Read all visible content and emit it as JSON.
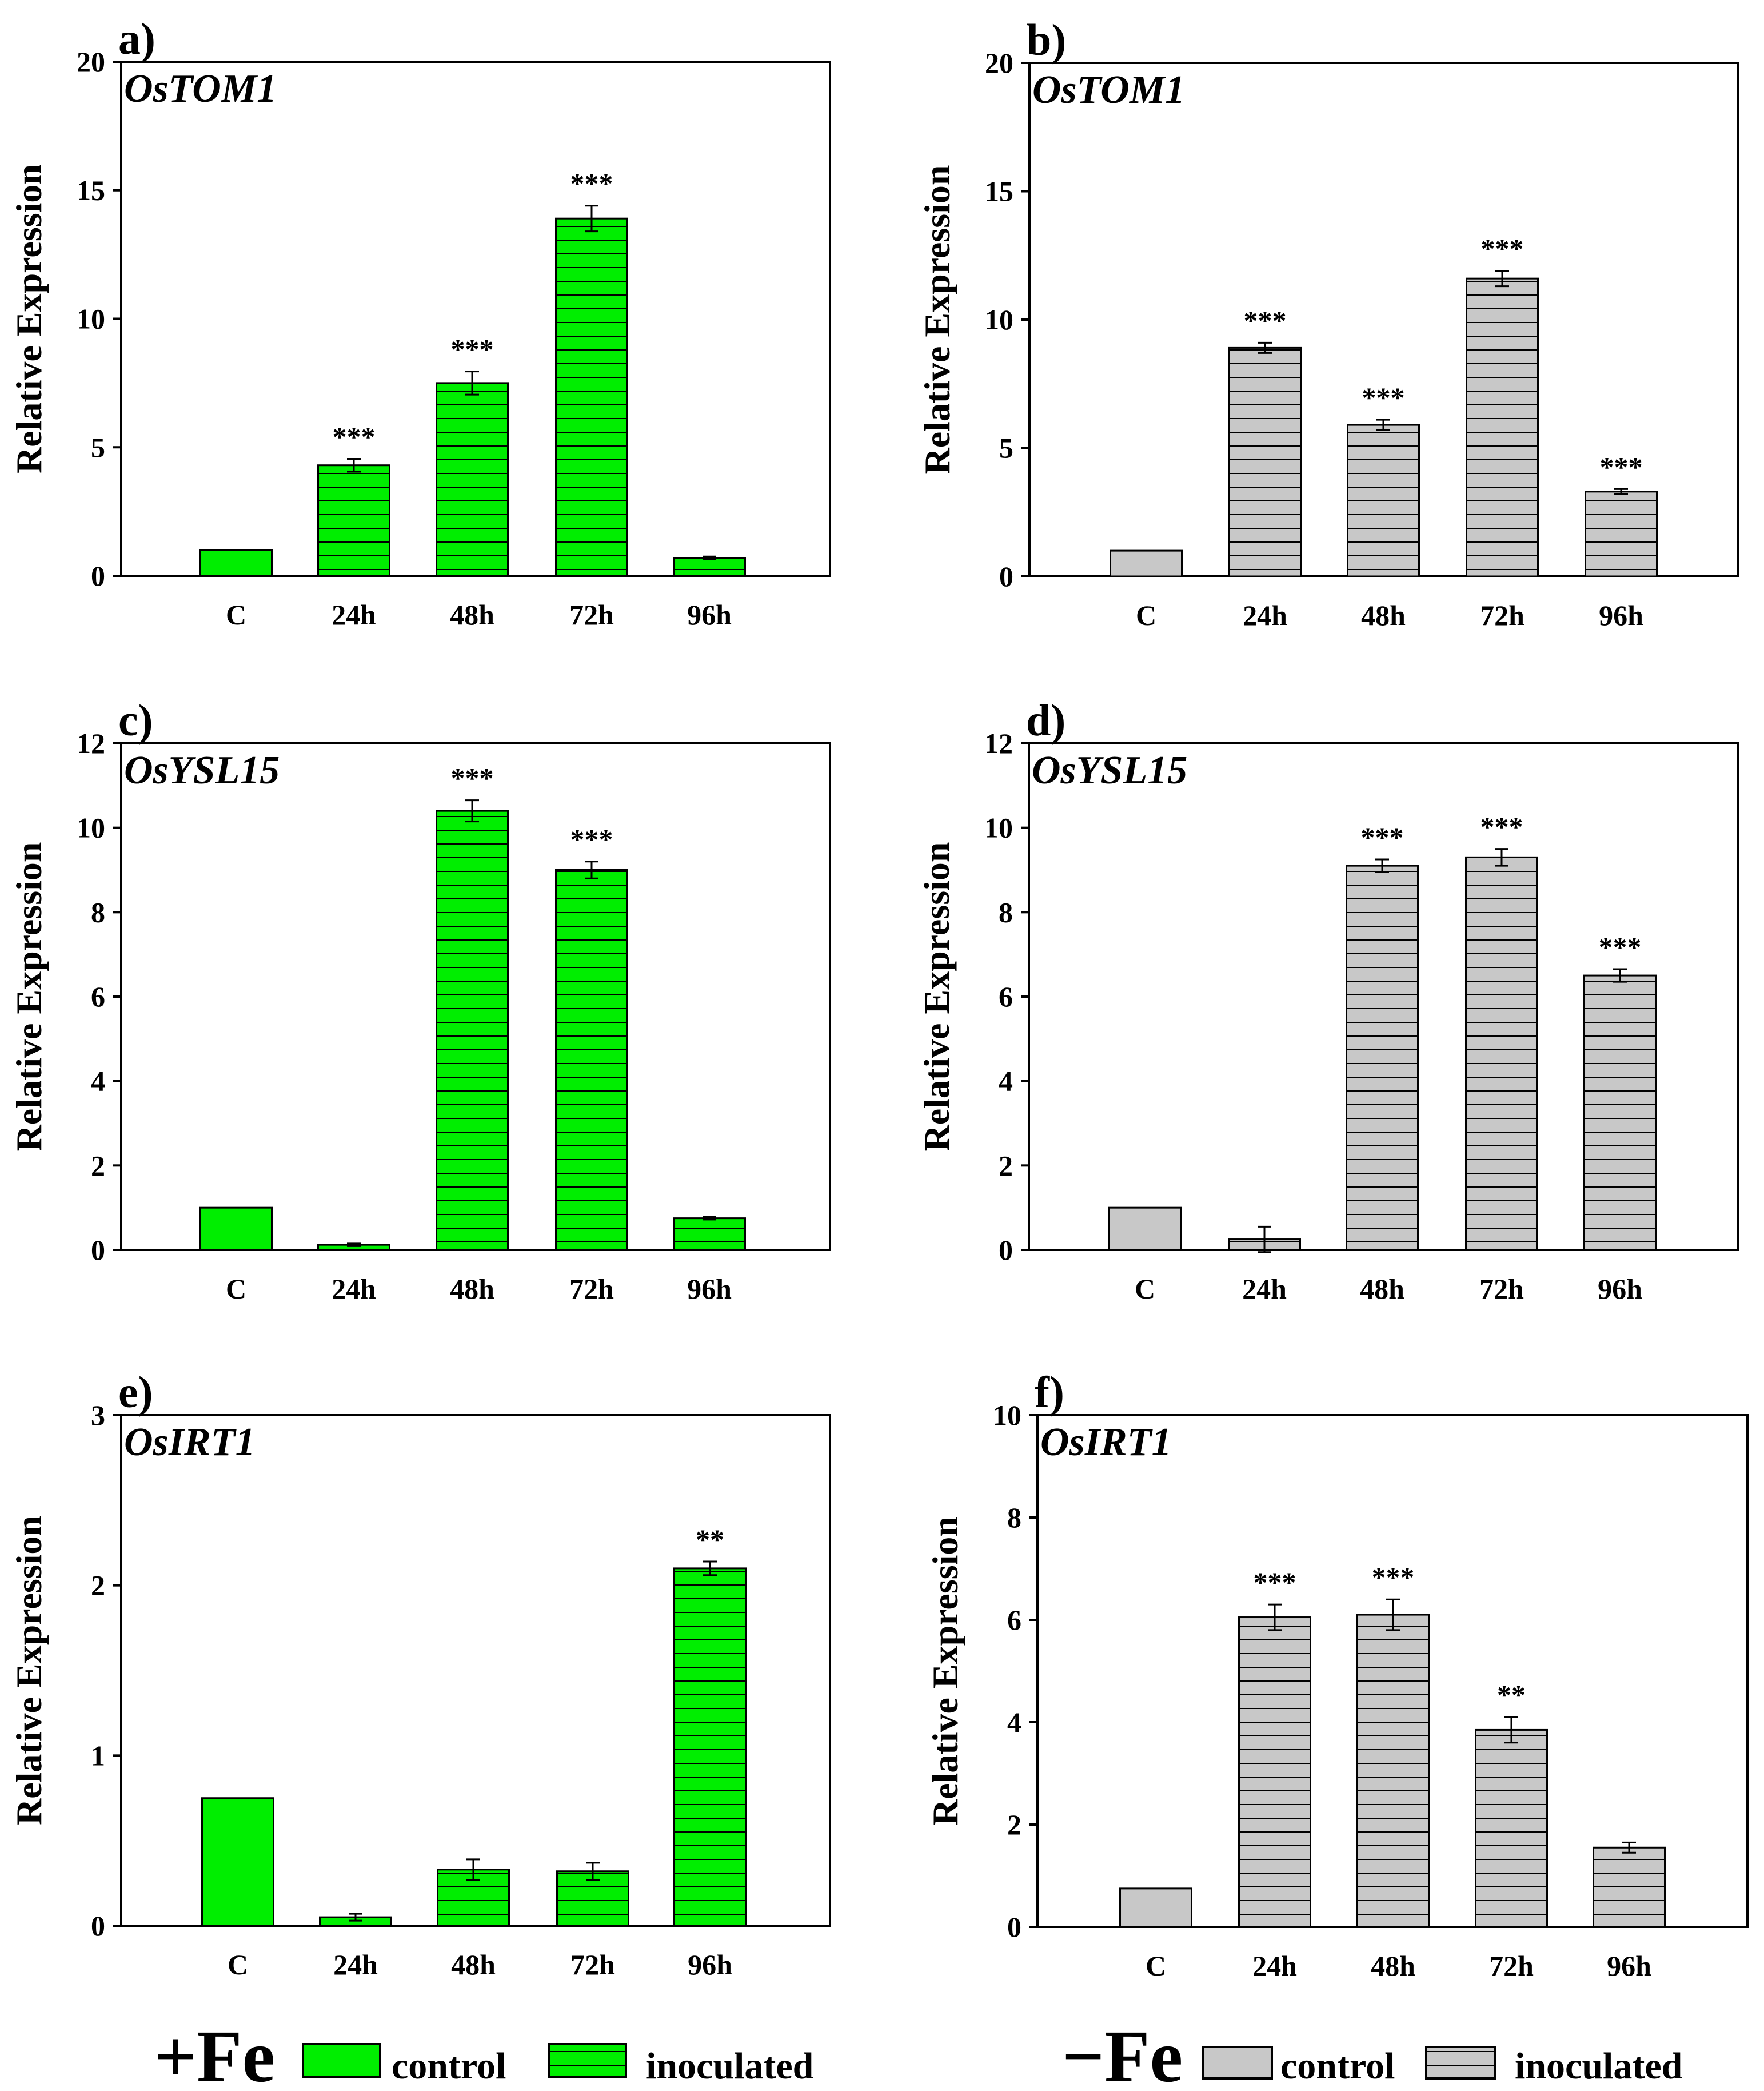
{
  "colors": {
    "fe_plus": "#00ee00",
    "fe_minus": "#c8c8c8",
    "stroke": "#000000"
  },
  "legend_plus": {
    "condition": "+Fe",
    "control": "control",
    "inoculated": "inoculated"
  },
  "legend_minus": {
    "condition": "−Fe",
    "control": "control",
    "inoculated": "inoculated"
  },
  "chart_data": [
    {
      "panel": "a)",
      "gene": "OsTOM1",
      "type": "bar",
      "fe": "plus",
      "ylabel": "Relative Expression",
      "ylim": [
        0,
        20
      ],
      "yticks": [
        "0",
        "5",
        "10",
        "15",
        "20"
      ],
      "categories": [
        "C",
        "24h",
        "48h",
        "72h",
        "96h"
      ],
      "series": [
        {
          "name": "+Fe",
          "values": [
            1.0,
            4.3,
            7.5,
            13.9,
            0.7
          ],
          "errors": [
            0,
            0.25,
            0.45,
            0.5,
            0.05
          ]
        }
      ],
      "significance": [
        "",
        "***",
        "***",
        "***",
        ""
      ]
    },
    {
      "panel": "b)",
      "gene": "OsTOM1",
      "type": "bar",
      "fe": "minus",
      "ylabel": "Relative Expression",
      "ylim": [
        0,
        20
      ],
      "yticks": [
        "0",
        "5",
        "10",
        "15",
        "20"
      ],
      "categories": [
        "C",
        "24h",
        "48h",
        "72h",
        "96h"
      ],
      "series": [
        {
          "name": "-Fe",
          "values": [
            1.0,
            8.9,
            5.9,
            11.6,
            3.3
          ],
          "errors": [
            0,
            0.2,
            0.2,
            0.3,
            0.1
          ]
        }
      ],
      "significance": [
        "",
        "***",
        "***",
        "***",
        "***"
      ]
    },
    {
      "panel": "c)",
      "gene": "OsYSL15",
      "type": "bar",
      "fe": "plus",
      "ylabel": "Relative Expression",
      "ylim": [
        0,
        12
      ],
      "yticks": [
        "0",
        "2",
        "4",
        "6",
        "8",
        "10",
        "12"
      ],
      "categories": [
        "C",
        "24h",
        "48h",
        "72h",
        "96h"
      ],
      "series": [
        {
          "name": "+Fe",
          "values": [
            1.0,
            0.12,
            10.4,
            9.0,
            0.75
          ],
          "errors": [
            0,
            0.03,
            0.25,
            0.2,
            0.03
          ]
        }
      ],
      "significance": [
        "",
        "",
        "***",
        "***",
        ""
      ]
    },
    {
      "panel": "d)",
      "gene": "OsYSL15",
      "type": "bar",
      "fe": "minus",
      "ylabel": "Relative Expression",
      "ylim": [
        0,
        12
      ],
      "yticks": [
        "0",
        "2",
        "4",
        "6",
        "8",
        "10",
        "12"
      ],
      "categories": [
        "C",
        "24h",
        "48h",
        "72h",
        "96h"
      ],
      "series": [
        {
          "name": "-Fe",
          "values": [
            1.0,
            0.25,
            9.1,
            9.3,
            6.5
          ],
          "errors": [
            0,
            0.3,
            0.15,
            0.2,
            0.15
          ]
        }
      ],
      "significance": [
        "",
        "",
        "***",
        "***",
        "***"
      ]
    },
    {
      "panel": "e)",
      "gene": "OsIRT1",
      "type": "bar",
      "fe": "plus",
      "ylabel": "Relative Expression",
      "ylim": [
        0,
        3
      ],
      "yticks": [
        "0",
        "1",
        "2",
        "3"
      ],
      "categories": [
        "C",
        "24h",
        "48h",
        "72h",
        "96h"
      ],
      "series": [
        {
          "name": "+Fe",
          "values": [
            0.75,
            0.05,
            0.33,
            0.32,
            2.1
          ],
          "errors": [
            0,
            0.02,
            0.06,
            0.05,
            0.04
          ]
        }
      ],
      "significance": [
        "",
        "",
        "",
        "",
        "**"
      ]
    },
    {
      "panel": "f)",
      "gene": "OsIRT1",
      "type": "bar",
      "fe": "minus",
      "ylabel": "Relative Expression",
      "ylim": [
        0,
        10
      ],
      "yticks": [
        "0",
        "2",
        "4",
        "6",
        "8",
        "10"
      ],
      "categories": [
        "C",
        "24h",
        "48h",
        "72h",
        "96h"
      ],
      "series": [
        {
          "name": "-Fe",
          "values": [
            0.75,
            6.05,
            6.1,
            3.85,
            1.55
          ],
          "errors": [
            0,
            0.25,
            0.3,
            0.25,
            0.1
          ]
        }
      ],
      "significance": [
        "",
        "***",
        "***",
        "**",
        ""
      ]
    }
  ]
}
